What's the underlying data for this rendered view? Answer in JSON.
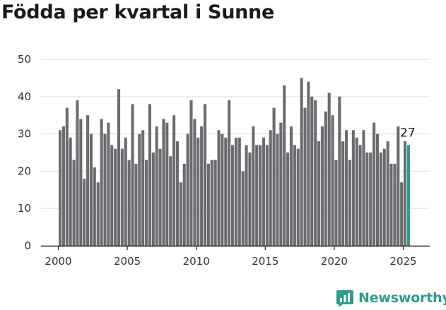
{
  "title": "Födda per kvartal i Sunne",
  "brand": {
    "name": "Newsworthy",
    "color": "#2e9c8f"
  },
  "colors": {
    "bar": "#6b6b70",
    "highlight": "#2e9c8f",
    "grid": "#e3e3e3",
    "axis": "#222222"
  },
  "chart_data": {
    "type": "bar",
    "title": "Födda per kvartal i Sunne",
    "xlabel": "",
    "ylabel": "",
    "ylim": [
      0,
      50
    ],
    "y_ticks": [
      "0",
      "10",
      "20",
      "30",
      "40",
      "50"
    ],
    "x_ticks": [
      "2000",
      "2005",
      "2010",
      "2015",
      "2020",
      "2025"
    ],
    "grid": true,
    "start": "2000 Q1",
    "highlight_label": "27",
    "values": [
      31,
      32,
      37,
      29,
      23,
      39,
      34,
      18,
      35,
      30,
      21,
      17,
      34,
      30,
      33,
      27,
      26,
      42,
      26,
      29,
      23,
      38,
      22,
      30,
      31,
      23,
      38,
      25,
      32,
      26,
      34,
      33,
      24,
      35,
      28,
      17,
      22,
      30,
      39,
      34,
      29,
      32,
      38,
      22,
      23,
      23,
      31,
      30,
      29,
      39,
      27,
      29,
      29,
      20,
      27,
      25,
      32,
      27,
      27,
      29,
      27,
      31,
      37,
      30,
      33,
      43,
      25,
      32,
      27,
      26,
      45,
      37,
      44,
      40,
      39,
      28,
      32,
      36,
      41,
      35,
      23,
      40,
      28,
      31,
      23,
      31,
      29,
      27,
      31,
      25,
      25,
      33,
      30,
      25,
      26,
      28,
      22,
      22,
      32,
      17,
      28,
      27
    ]
  }
}
